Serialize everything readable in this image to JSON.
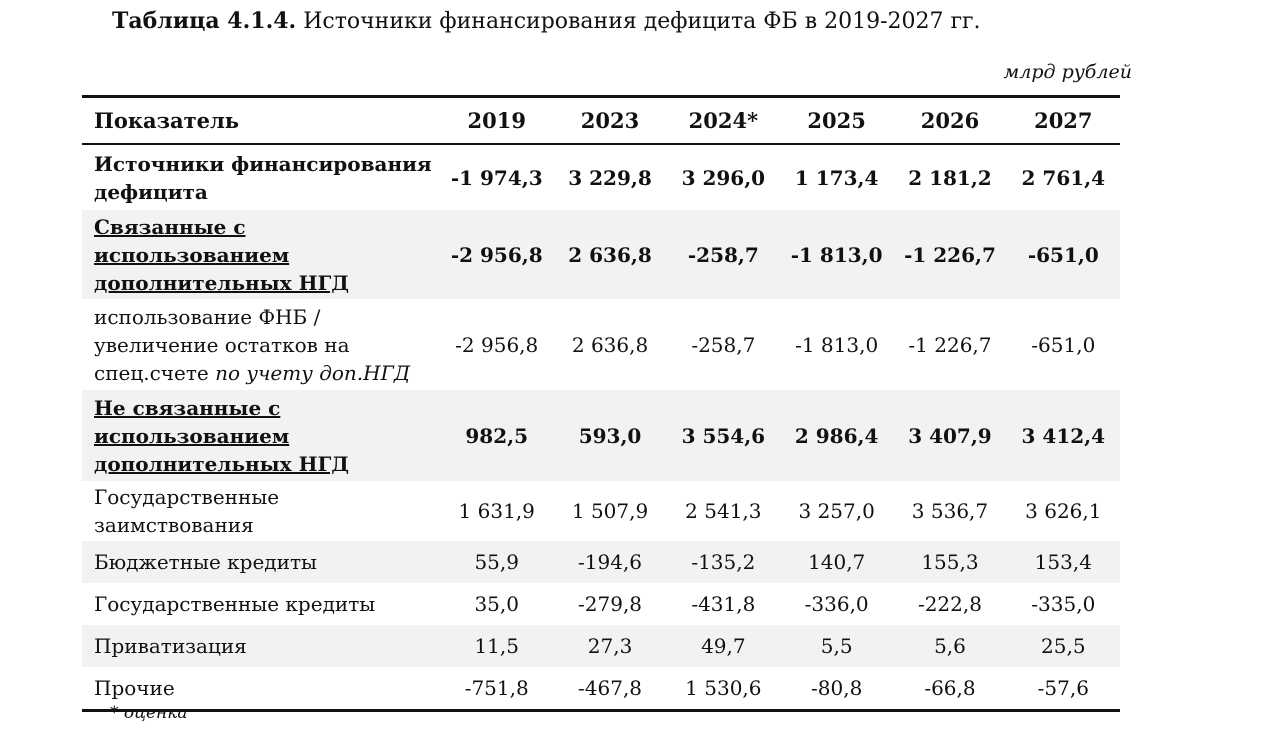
{
  "title": {
    "bold": "Таблица 4.1.4.",
    "rest": " Источники финансирования дефицита ФБ в 2019-2027 гг."
  },
  "units": "млрд рублей",
  "table": {
    "header": [
      "Показатель",
      "2019",
      "2023",
      "2024*",
      "2025",
      "2026",
      "2027"
    ],
    "rows": [
      {
        "label": "Источники финансирования дефицита",
        "values": [
          "-1 974,3",
          "3 229,8",
          "3 296,0",
          "1 173,4",
          "2 181,2",
          "2 761,4"
        ]
      },
      {
        "label": "Связанные с использованием дополнительных НГД",
        "values": [
          "-2 956,8",
          "2 636,8",
          "-258,7",
          "-1 813,0",
          "-1 226,7",
          "-651,0"
        ]
      },
      {
        "label": "использование ФНБ / увеличение остатков на спец.счете ",
        "label_italic": "по учету доп.НГД",
        "values": [
          "-2 956,8",
          "2 636,8",
          "-258,7",
          "-1 813,0",
          "-1 226,7",
          "-651,0"
        ]
      },
      {
        "label": "Не связанные с использованием дополнительных НГД",
        "values": [
          "982,5",
          "593,0",
          "3 554,6",
          "2 986,4",
          "3 407,9",
          "3 412,4"
        ]
      },
      {
        "label": "Государственные заимствования",
        "values": [
          "1 631,9",
          "1 507,9",
          "2 541,3",
          "3 257,0",
          "3 536,7",
          "3 626,1"
        ]
      },
      {
        "label": "Бюджетные кредиты",
        "values": [
          "55,9",
          "-194,6",
          "-135,2",
          "140,7",
          "155,3",
          "153,4"
        ]
      },
      {
        "label": "Государственные кредиты",
        "values": [
          "35,0",
          "-279,8",
          "-431,8",
          "-336,0",
          "-222,8",
          "-335,0"
        ]
      },
      {
        "label": "Приватизация",
        "values": [
          "11,5",
          "27,3",
          "49,7",
          "5,5",
          "5,6",
          "25,5"
        ]
      },
      {
        "label": "Прочие",
        "values": [
          "-751,8",
          "-467,8",
          "1 530,6",
          "-80,8",
          "-66,8",
          "-57,6"
        ]
      }
    ]
  },
  "footnote": "* оценка"
}
